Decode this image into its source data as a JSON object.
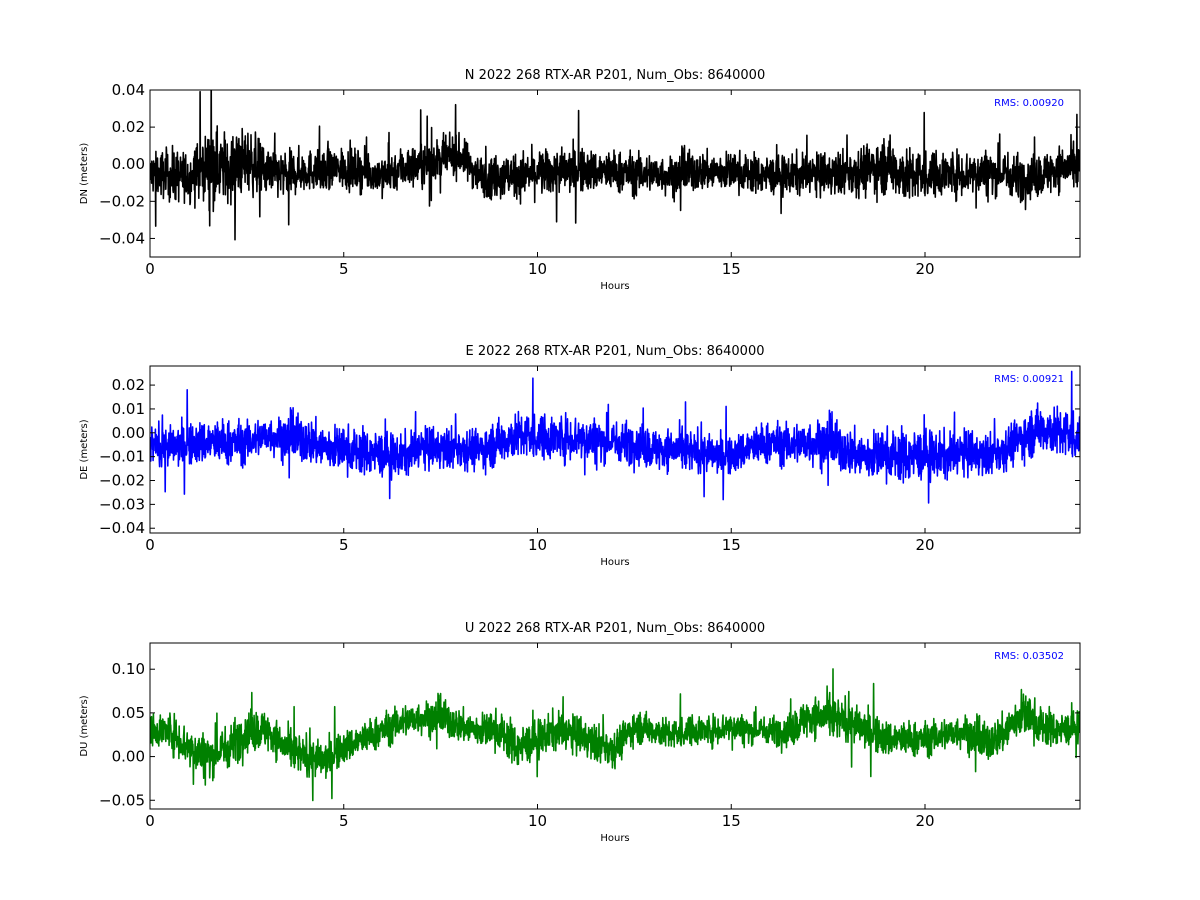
{
  "chart_data": [
    {
      "type": "line",
      "title": "N 2022 268 RTX-AR  P201, Num_Obs: 8640000",
      "xlabel": "Hours",
      "ylabel": "DN (meters)",
      "xlim": [
        0,
        24
      ],
      "ylim": [
        -0.05,
        0.04
      ],
      "xticks": [
        "0",
        "5",
        "10",
        "15",
        "20"
      ],
      "yticks": [
        "0.04",
        "0.02",
        "0.00",
        "−0.02",
        "−0.04"
      ],
      "ytick_values": [
        0.04,
        0.02,
        0.0,
        -0.02,
        -0.04
      ],
      "annotation": "RMS:  0.00920",
      "grid": false,
      "series": [
        {
          "color": "#000000",
          "x": [
            0,
            0.5,
            1,
            1.5,
            2,
            2.5,
            3,
            3.5,
            4,
            4.5,
            5,
            5.5,
            6,
            6.5,
            7,
            7.5,
            8,
            8.5,
            9,
            9.5,
            10,
            10.5,
            11,
            11.5,
            12,
            12.5,
            13,
            13.5,
            14,
            14.5,
            15,
            15.5,
            16,
            16.5,
            17,
            17.5,
            18,
            18.5,
            19,
            19.5,
            20,
            20.5,
            21,
            21.5,
            22,
            22.5,
            23,
            23.5,
            24
          ],
          "y": [
            -0.005,
            -0.006,
            -0.007,
            0.0,
            -0.002,
            0.002,
            -0.004,
            -0.006,
            -0.003,
            -0.004,
            -0.002,
            -0.004,
            -0.006,
            -0.002,
            0.0,
            0.003,
            0.005,
            -0.006,
            -0.007,
            -0.006,
            -0.005,
            -0.004,
            -0.003,
            -0.004,
            -0.004,
            -0.005,
            -0.005,
            -0.006,
            -0.004,
            -0.004,
            -0.004,
            -0.005,
            -0.006,
            -0.006,
            -0.005,
            -0.006,
            -0.004,
            -0.003,
            0.0,
            -0.006,
            -0.006,
            -0.005,
            -0.005,
            -0.004,
            -0.005,
            -0.007,
            -0.006,
            -0.002,
            -0.002
          ],
          "band": [
            0.013,
            0.016,
            0.016,
            0.02,
            0.022,
            0.02,
            0.016,
            0.014,
            0.013,
            0.012,
            0.013,
            0.012,
            0.012,
            0.013,
            0.013,
            0.012,
            0.012,
            0.012,
            0.014,
            0.014,
            0.014,
            0.014,
            0.014,
            0.013,
            0.013,
            0.013,
            0.012,
            0.012,
            0.012,
            0.012,
            0.012,
            0.012,
            0.012,
            0.012,
            0.013,
            0.013,
            0.014,
            0.016,
            0.018,
            0.017,
            0.015,
            0.014,
            0.014,
            0.014,
            0.014,
            0.014,
            0.013,
            0.014,
            0.014
          ]
        }
      ]
    },
    {
      "type": "line",
      "title": "E 2022 268 RTX-AR  P201, Num_Obs: 8640000",
      "xlabel": "Hours",
      "ylabel": "DE (meters)",
      "xlim": [
        0,
        24
      ],
      "ylim": [
        -0.042,
        0.028
      ],
      "xticks": [
        "0",
        "5",
        "10",
        "15",
        "20"
      ],
      "yticks": [
        "0.02",
        "0.01",
        "0.00",
        "−0.01",
        "−0.02",
        "−0.03",
        "−0.04"
      ],
      "ytick_values": [
        0.02,
        0.01,
        0.0,
        -0.01,
        -0.02,
        -0.03,
        -0.04
      ],
      "annotation": "RMS:  0.00921",
      "grid": false,
      "series": [
        {
          "color": "#0000ff",
          "x": [
            0,
            0.5,
            1,
            1.5,
            2,
            2.5,
            3,
            3.5,
            4,
            4.5,
            5,
            5.5,
            6,
            6.5,
            7,
            7.5,
            8,
            8.5,
            9,
            9.5,
            10,
            10.5,
            11,
            11.5,
            12,
            12.5,
            13,
            13.5,
            14,
            14.5,
            15,
            15.5,
            16,
            16.5,
            17,
            17.5,
            18,
            18.5,
            19,
            19.5,
            20,
            20.5,
            21,
            21.5,
            22,
            22.5,
            23,
            23.5,
            24
          ],
          "y": [
            -0.005,
            -0.006,
            -0.005,
            -0.004,
            -0.004,
            -0.004,
            -0.001,
            -0.002,
            -0.003,
            -0.006,
            -0.007,
            -0.008,
            -0.009,
            -0.01,
            -0.006,
            -0.007,
            -0.006,
            -0.007,
            -0.004,
            -0.001,
            -0.002,
            -0.002,
            -0.002,
            -0.003,
            -0.004,
            -0.004,
            -0.007,
            -0.007,
            -0.008,
            -0.009,
            -0.01,
            -0.006,
            -0.004,
            -0.005,
            -0.004,
            -0.004,
            -0.008,
            -0.01,
            -0.009,
            -0.01,
            -0.009,
            -0.01,
            -0.008,
            -0.01,
            -0.007,
            -0.002,
            0.002,
            0.0,
            -0.002
          ],
          "band": [
            0.009,
            0.01,
            0.01,
            0.011,
            0.011,
            0.01,
            0.009,
            0.01,
            0.011,
            0.011,
            0.011,
            0.011,
            0.011,
            0.01,
            0.01,
            0.01,
            0.01,
            0.01,
            0.011,
            0.011,
            0.011,
            0.011,
            0.011,
            0.011,
            0.01,
            0.01,
            0.01,
            0.01,
            0.01,
            0.009,
            0.009,
            0.01,
            0.01,
            0.01,
            0.011,
            0.011,
            0.011,
            0.012,
            0.012,
            0.013,
            0.012,
            0.011,
            0.011,
            0.01,
            0.01,
            0.011,
            0.012,
            0.012,
            0.012
          ]
        }
      ]
    },
    {
      "type": "line",
      "title": "U 2022 268 RTX-AR  P201, Num_Obs: 8640000",
      "xlabel": "Hours",
      "ylabel": "DU (meters)",
      "xlim": [
        0,
        24
      ],
      "ylim": [
        -0.06,
        0.13
      ],
      "xticks": [
        "0",
        "5",
        "10",
        "15",
        "20"
      ],
      "yticks": [
        "0.10",
        "0.05",
        "0.00",
        "−0.05"
      ],
      "ytick_values": [
        0.1,
        0.05,
        0.0,
        -0.05
      ],
      "annotation": "RMS:  0.03502",
      "grid": false,
      "series": [
        {
          "color": "#008000",
          "x": [
            0,
            0.5,
            1,
            1.5,
            2,
            2.5,
            3,
            3.5,
            4,
            4.5,
            5,
            5.5,
            6,
            6.5,
            7,
            7.5,
            8,
            8.5,
            9,
            9.5,
            10,
            10.5,
            11,
            11.5,
            12,
            12.5,
            13,
            13.5,
            14,
            14.5,
            15,
            15.5,
            16,
            16.5,
            17,
            17.5,
            18,
            18.5,
            19,
            19.5,
            20,
            20.5,
            21,
            21.5,
            22,
            22.5,
            23,
            23.5,
            24
          ],
          "y": [
            0.03,
            0.03,
            0.01,
            0.0,
            0.01,
            0.03,
            0.03,
            0.01,
            0.0,
            -0.005,
            0.01,
            0.02,
            0.03,
            0.04,
            0.045,
            0.045,
            0.035,
            0.03,
            0.03,
            0.01,
            0.02,
            0.03,
            0.025,
            0.015,
            0.01,
            0.035,
            0.03,
            0.025,
            0.03,
            0.03,
            0.035,
            0.03,
            0.03,
            0.03,
            0.045,
            0.045,
            0.04,
            0.03,
            0.02,
            0.02,
            0.02,
            0.025,
            0.03,
            0.015,
            0.025,
            0.05,
            0.035,
            0.03,
            0.035
          ],
          "band": [
            0.02,
            0.025,
            0.028,
            0.03,
            0.03,
            0.028,
            0.026,
            0.025,
            0.025,
            0.025,
            0.022,
            0.022,
            0.022,
            0.022,
            0.022,
            0.022,
            0.022,
            0.022,
            0.026,
            0.028,
            0.025,
            0.025,
            0.025,
            0.025,
            0.024,
            0.022,
            0.02,
            0.02,
            0.02,
            0.02,
            0.02,
            0.018,
            0.018,
            0.022,
            0.026,
            0.028,
            0.026,
            0.025,
            0.024,
            0.024,
            0.022,
            0.022,
            0.022,
            0.024,
            0.026,
            0.03,
            0.026,
            0.022,
            0.02
          ]
        }
      ]
    }
  ]
}
